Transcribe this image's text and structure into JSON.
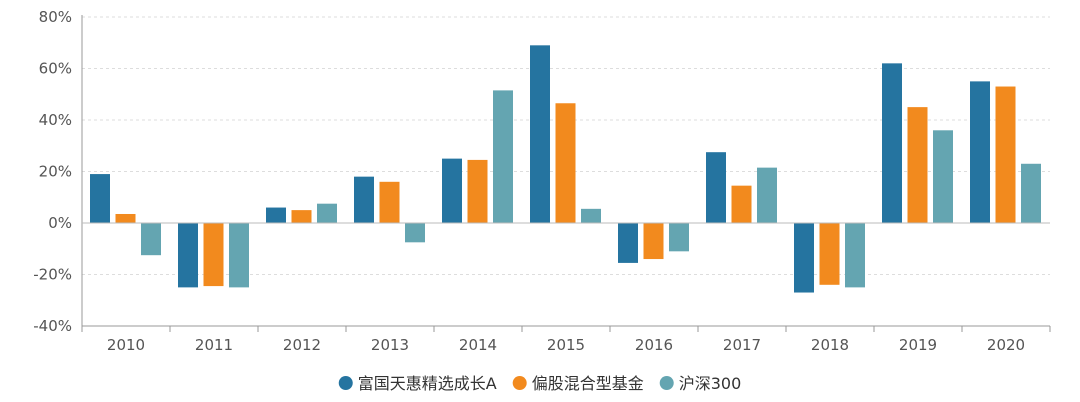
{
  "chart_data": {
    "type": "bar",
    "title": "",
    "xlabel": "",
    "ylabel": "",
    "categories": [
      "2010",
      "2011",
      "2012",
      "2013",
      "2014",
      "2015",
      "2016",
      "2017",
      "2018",
      "2019",
      "2020"
    ],
    "series": [
      {
        "name": "富国天惠精选成长A",
        "color": "#2574A0",
        "values": [
          19,
          -25,
          6,
          18,
          25,
          69,
          -15.5,
          27.5,
          -27,
          62,
          55
        ]
      },
      {
        "name": "偏股混合型基金",
        "color": "#F28A1E",
        "values": [
          3.5,
          -24.5,
          5,
          16,
          24.5,
          46.5,
          -14,
          14.5,
          -24,
          45,
          53
        ]
      },
      {
        "name": "沪深300",
        "color": "#64A5B1",
        "values": [
          -12.5,
          -25,
          7.5,
          -7.5,
          51.5,
          5.5,
          -11,
          21.5,
          -25,
          36,
          23
        ]
      }
    ],
    "ylim": [
      -40,
      80
    ],
    "yticks": [
      "80%",
      "60%",
      "40%",
      "20%",
      "0%",
      "-20%",
      "-40%"
    ],
    "ytick_values": [
      80,
      60,
      40,
      20,
      0,
      -20,
      -40
    ],
    "grid": true,
    "legend_position": "bottom-center"
  }
}
